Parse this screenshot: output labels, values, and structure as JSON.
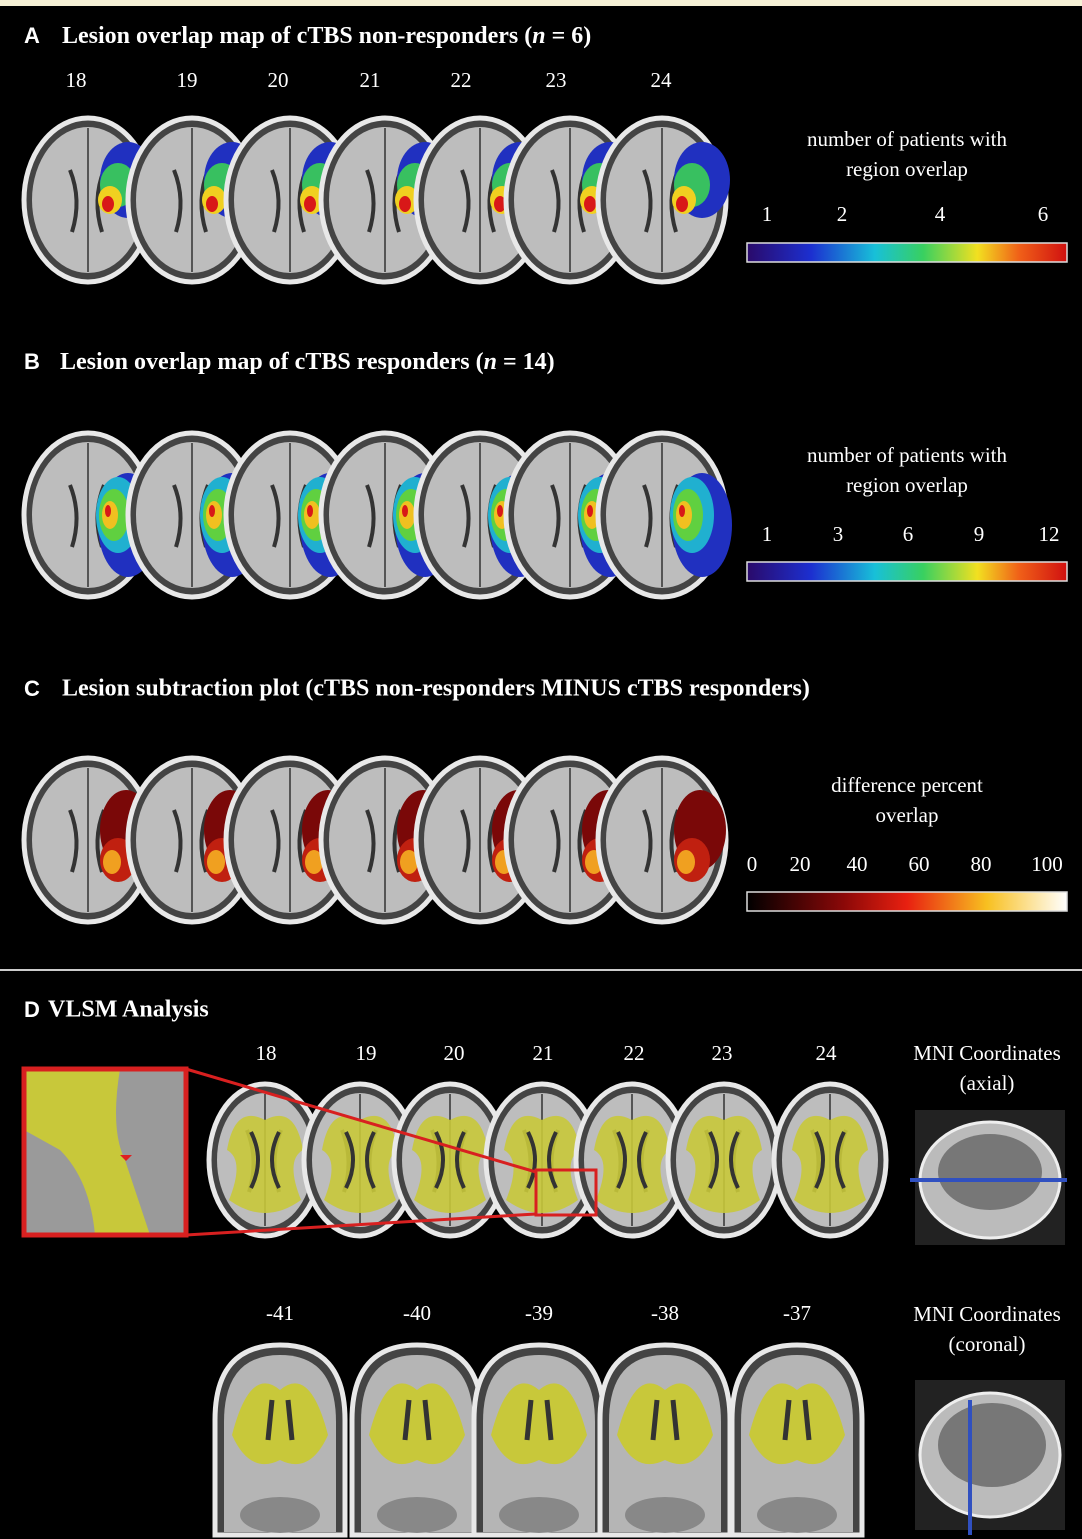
{
  "panels": [
    {
      "letter": "A",
      "title": [
        "Lesion overlap map of cTBS non-responders (",
        "n",
        " = 6)"
      ],
      "slices": [
        "18",
        "19",
        "20",
        "21",
        "22",
        "23",
        "24"
      ],
      "scale_label": [
        "number of patients with",
        "region overlap"
      ],
      "scale_ticks": [
        "1",
        "2",
        "4",
        "6"
      ]
    },
    {
      "letter": "B",
      "title": [
        "Lesion overlap map of cTBS responders (",
        "n",
        " = 14)"
      ],
      "scale_label": [
        "number of patients with",
        "region overlap"
      ],
      "scale_ticks": [
        "1",
        "3",
        "6",
        "9",
        "12"
      ]
    },
    {
      "letter": "C",
      "title": [
        "Lesion subtraction plot (cTBS non-responders MINUS cTBS responders)"
      ],
      "scale_label": [
        "difference percent",
        "overlap"
      ],
      "scale_ticks": [
        "0",
        "20",
        "40",
        "60",
        "80",
        "100"
      ]
    },
    {
      "letter": "D",
      "title": [
        "VLSM Analysis"
      ],
      "axial_slices": [
        "18",
        "19",
        "20",
        "21",
        "22",
        "23",
        "24"
      ],
      "axial_label": [
        "MNI Coordinates",
        "(axial)"
      ],
      "coronal_slices": [
        "-41",
        "-40",
        "-39",
        "-38",
        "-37"
      ],
      "coronal_label": [
        "MNI Coordinates",
        "(coronal)"
      ]
    }
  ]
}
